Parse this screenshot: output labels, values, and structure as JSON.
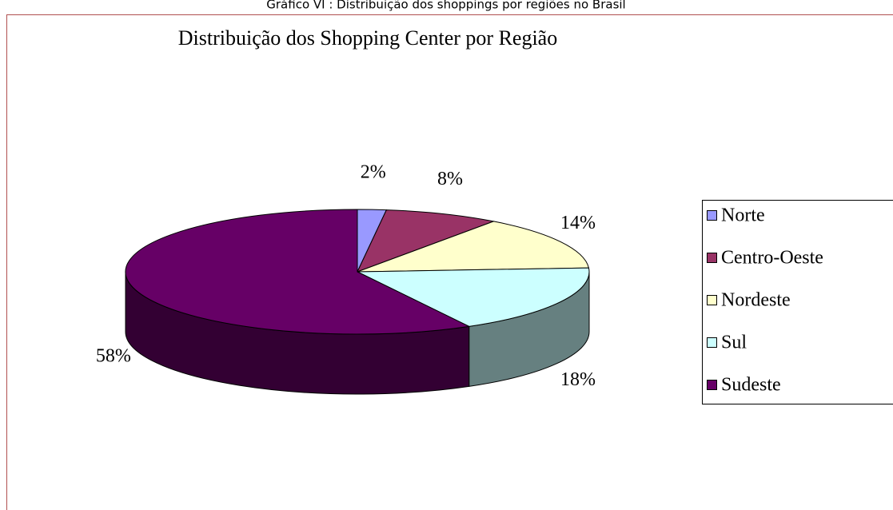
{
  "caption": "Gráfico VI : Distribuição dos shoppings por regiões no Brasil",
  "chart_data": {
    "type": "pie3d",
    "title": "Distribuição dos Shopping Center por Região",
    "categories": [
      "Norte",
      "Centro-Oeste",
      "Nordeste",
      "Sul",
      "Sudeste"
    ],
    "values": [
      2,
      8,
      14,
      18,
      58
    ],
    "value_labels": [
      "2%",
      "8%",
      "14%",
      "18%",
      "58%"
    ],
    "colors": [
      "#9999ff",
      "#993366",
      "#ffffcc",
      "#ccffff",
      "#660066"
    ],
    "legend": "right"
  }
}
